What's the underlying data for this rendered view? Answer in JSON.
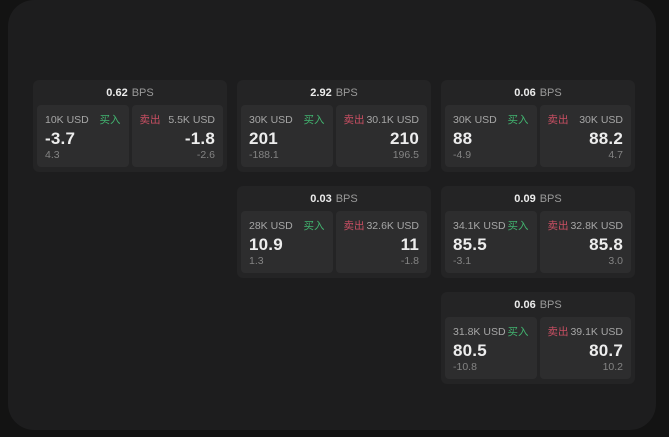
{
  "labels": {
    "unit": "BPS",
    "buy": "买入",
    "sell": "卖出"
  },
  "colors": {
    "outer_background": "#131313",
    "panel_background": "#1d1d1e",
    "card_background": "#242425",
    "tile_background": "#2d2d2e",
    "buy_green": "#42b470",
    "sell_red": "#c94f63",
    "value_white": "#ededed",
    "label_gray": "#a6a6a6",
    "sub_gray": "#848484"
  },
  "cards": [
    {
      "bps": "0.62",
      "col": 1,
      "row": 1,
      "buy": {
        "amount": "10K USD",
        "value": "-3.7",
        "delta": "4.3"
      },
      "sell": {
        "amount": "5.5K USD",
        "value": "-1.8",
        "delta": "-2.6"
      }
    },
    {
      "bps": "2.92",
      "col": 2,
      "row": 1,
      "buy": {
        "amount": "30K USD",
        "value": "201",
        "delta": "-188.1"
      },
      "sell": {
        "amount": "30.1K USD",
        "value": "210",
        "delta": "196.5"
      }
    },
    {
      "bps": "0.06",
      "col": 3,
      "row": 1,
      "buy": {
        "amount": "30K USD",
        "value": "88",
        "delta": "-4.9"
      },
      "sell": {
        "amount": "30K USD",
        "value": "88.2",
        "delta": "4.7"
      }
    },
    {
      "bps": "0.03",
      "col": 2,
      "row": 2,
      "buy": {
        "amount": "28K USD",
        "value": "10.9",
        "delta": "1.3"
      },
      "sell": {
        "amount": "32.6K USD",
        "value": "11",
        "delta": "-1.8"
      }
    },
    {
      "bps": "0.09",
      "col": 3,
      "row": 2,
      "buy": {
        "amount": "34.1K USD",
        "value": "85.5",
        "delta": "-3.1"
      },
      "sell": {
        "amount": "32.8K USD",
        "value": "85.8",
        "delta": "3.0"
      }
    },
    {
      "bps": "0.06",
      "col": 3,
      "row": 3,
      "buy": {
        "amount": "31.8K USD",
        "value": "80.5",
        "delta": "-10.8"
      },
      "sell": {
        "amount": "39.1K USD",
        "value": "80.7",
        "delta": "10.2"
      }
    }
  ]
}
